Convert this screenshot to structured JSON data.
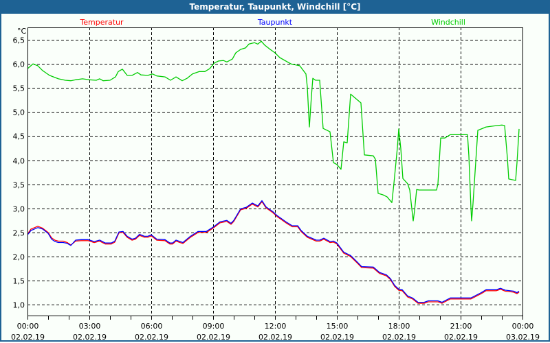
{
  "window": {
    "title": "Temperatur, Taupunkt, Windchill [°C]"
  },
  "chart_data": {
    "type": "line",
    "title": "Temperatur, Taupunkt, Windchill [°C]",
    "ylabel": "°C",
    "xlabel": "",
    "ylim": [
      0.75,
      6.75
    ],
    "xlim": [
      "02.02.19 00:00",
      "03.02.19 00:00"
    ],
    "grid": true,
    "legend_position": "top",
    "y_ticks": [
      "1,0",
      "1,5",
      "2,0",
      "2,5",
      "3,0",
      "3,5",
      "4,0",
      "4,5",
      "5,0",
      "5,5",
      "6,0",
      "6,5"
    ],
    "y_tick_values": [
      1.0,
      1.5,
      2.0,
      2.5,
      3.0,
      3.5,
      4.0,
      4.5,
      5.0,
      5.5,
      6.0,
      6.5
    ],
    "x_ticks": [
      {
        "time": "00:00",
        "date": "02.02.19"
      },
      {
        "time": "03:00",
        "date": "02.02.19"
      },
      {
        "time": "06:00",
        "date": "02.02.19"
      },
      {
        "time": "09:00",
        "date": "02.02.19"
      },
      {
        "time": "12:00",
        "date": "02.02.19"
      },
      {
        "time": "15:00",
        "date": "02.02.19"
      },
      {
        "time": "18:00",
        "date": "02.02.19"
      },
      {
        "time": "21:00",
        "date": "02.02.19"
      },
      {
        "time": "00:00",
        "date": "03.02.19"
      }
    ],
    "series": [
      {
        "name": "Windchill",
        "color": "#00cc00",
        "x": [
          "00:00",
          "00:16",
          "00:30",
          "00:44",
          "01:04",
          "01:30",
          "01:50",
          "02:06",
          "02:20",
          "02:40",
          "03:00",
          "03:20",
          "03:30",
          "03:40",
          "04:00",
          "04:16",
          "04:24",
          "04:36",
          "04:50",
          "05:04",
          "05:20",
          "05:30",
          "05:50",
          "06:04",
          "06:16",
          "06:40",
          "06:56",
          "07:12",
          "07:30",
          "07:44",
          "08:00",
          "08:20",
          "08:36",
          "08:50",
          "09:04",
          "09:16",
          "09:30",
          "09:40",
          "09:56",
          "10:06",
          "10:20",
          "10:34",
          "10:44",
          "11:00",
          "11:10",
          "11:20",
          "11:30",
          "11:44",
          "12:00",
          "12:14",
          "12:46",
          "13:12",
          "13:30",
          "13:34",
          "13:40",
          "13:46",
          "13:50",
          "13:58",
          "14:10",
          "14:20",
          "14:40",
          "14:50",
          "15:00",
          "15:12",
          "15:20",
          "15:30",
          "15:40",
          "16:10",
          "16:20",
          "16:46",
          "16:52",
          "17:00",
          "17:14",
          "17:26",
          "17:40",
          "17:46",
          "17:56",
          "18:00",
          "18:06",
          "18:12",
          "18:26",
          "18:32",
          "18:42",
          "18:46",
          "18:52",
          "19:00",
          "19:50",
          "19:54",
          "20:02",
          "20:14",
          "20:30",
          "21:20",
          "21:24",
          "21:30",
          "21:32",
          "21:36",
          "21:50",
          "22:14",
          "22:46",
          "23:00",
          "23:08",
          "23:16",
          "23:20",
          "23:40",
          "23:44",
          "23:50"
        ],
        "values": [
          5.9,
          6.0,
          5.96,
          5.86,
          5.76,
          5.69,
          5.66,
          5.65,
          5.67,
          5.69,
          5.67,
          5.66,
          5.69,
          5.65,
          5.66,
          5.73,
          5.84,
          5.89,
          5.76,
          5.76,
          5.82,
          5.77,
          5.76,
          5.79,
          5.75,
          5.73,
          5.66,
          5.73,
          5.65,
          5.7,
          5.79,
          5.84,
          5.84,
          5.9,
          6.02,
          6.06,
          6.07,
          6.04,
          6.1,
          6.23,
          6.3,
          6.33,
          6.41,
          6.44,
          6.41,
          6.47,
          6.39,
          6.31,
          6.23,
          6.13,
          6.0,
          5.96,
          5.79,
          5.52,
          4.69,
          5.33,
          5.7,
          5.66,
          5.66,
          4.66,
          4.59,
          3.95,
          3.91,
          3.81,
          4.38,
          4.36,
          5.37,
          5.19,
          4.11,
          4.09,
          4.02,
          3.31,
          3.28,
          3.24,
          3.12,
          3.52,
          4.26,
          4.65,
          4.24,
          3.62,
          3.51,
          3.38,
          2.74,
          2.95,
          3.39,
          3.38,
          3.38,
          3.51,
          4.46,
          4.46,
          4.53,
          4.53,
          4.09,
          3.01,
          2.74,
          3.1,
          4.62,
          4.69,
          4.72,
          4.73,
          4.72,
          4.05,
          3.61,
          3.58,
          3.95,
          4.65
        ]
      },
      {
        "name": "Temperatur",
        "color": "#ff0000",
        "x": [
          "00:00",
          "00:10",
          "00:30",
          "00:44",
          "01:00",
          "01:10",
          "01:20",
          "01:30",
          "01:44",
          "01:56",
          "02:06",
          "02:20",
          "02:36",
          "02:56",
          "03:14",
          "03:30",
          "03:46",
          "04:04",
          "04:14",
          "04:26",
          "04:38",
          "04:50",
          "05:04",
          "05:14",
          "05:26",
          "05:40",
          "05:50",
          "06:00",
          "06:16",
          "06:40",
          "06:54",
          "07:02",
          "07:12",
          "07:24",
          "07:32",
          "07:54",
          "08:16",
          "08:40",
          "09:00",
          "09:20",
          "09:40",
          "09:52",
          "10:00",
          "10:20",
          "10:36",
          "10:54",
          "11:10",
          "11:22",
          "11:34",
          "11:54",
          "12:06",
          "12:20",
          "12:34",
          "12:50",
          "13:06",
          "13:16",
          "13:34",
          "14:00",
          "14:10",
          "14:22",
          "14:40",
          "14:50",
          "15:00",
          "15:20",
          "15:40",
          "16:00",
          "16:12",
          "16:46",
          "17:04",
          "17:24",
          "17:36",
          "17:48",
          "18:00",
          "18:10",
          "18:26",
          "18:40",
          "18:56",
          "19:14",
          "19:26",
          "19:54",
          "20:06",
          "20:30",
          "21:30",
          "22:00",
          "22:14",
          "22:44",
          "22:56",
          "23:10",
          "23:34",
          "23:44",
          "23:50"
        ],
        "values": [
          2.48,
          2.58,
          2.64,
          2.6,
          2.51,
          2.4,
          2.35,
          2.33,
          2.33,
          2.3,
          2.25,
          2.33,
          2.34,
          2.34,
          2.3,
          2.33,
          2.27,
          2.27,
          2.31,
          2.5,
          2.51,
          2.41,
          2.35,
          2.37,
          2.45,
          2.41,
          2.41,
          2.44,
          2.35,
          2.34,
          2.27,
          2.27,
          2.33,
          2.3,
          2.28,
          2.41,
          2.51,
          2.51,
          2.6,
          2.71,
          2.74,
          2.68,
          2.74,
          2.98,
          3.01,
          3.1,
          3.04,
          3.15,
          3.02,
          2.92,
          2.84,
          2.77,
          2.7,
          2.63,
          2.63,
          2.53,
          2.41,
          2.33,
          2.33,
          2.37,
          2.3,
          2.31,
          2.27,
          2.08,
          2.01,
          1.87,
          1.78,
          1.77,
          1.66,
          1.61,
          1.53,
          1.39,
          1.31,
          1.3,
          1.17,
          1.13,
          1.04,
          1.04,
          1.07,
          1.07,
          1.04,
          1.13,
          1.13,
          1.24,
          1.3,
          1.3,
          1.33,
          1.29,
          1.27,
          1.24,
          1.27
        ]
      },
      {
        "name": "Taupunkt",
        "color": "#0000ff",
        "x": [
          "00:00",
          "00:10",
          "00:30",
          "00:44",
          "01:00",
          "01:10",
          "01:20",
          "01:30",
          "01:44",
          "01:56",
          "02:06",
          "02:20",
          "02:36",
          "02:56",
          "03:14",
          "03:30",
          "03:46",
          "04:04",
          "04:14",
          "04:26",
          "04:38",
          "04:50",
          "05:04",
          "05:14",
          "05:26",
          "05:40",
          "05:50",
          "06:00",
          "06:16",
          "06:40",
          "06:54",
          "07:02",
          "07:12",
          "07:24",
          "07:32",
          "07:54",
          "08:16",
          "08:40",
          "09:00",
          "09:20",
          "09:40",
          "09:52",
          "10:00",
          "10:20",
          "10:36",
          "10:54",
          "11:10",
          "11:22",
          "11:34",
          "11:54",
          "12:06",
          "12:20",
          "12:34",
          "12:50",
          "13:06",
          "13:16",
          "13:34",
          "14:00",
          "14:10",
          "14:22",
          "14:40",
          "14:50",
          "15:00",
          "15:20",
          "15:40",
          "16:00",
          "16:12",
          "16:46",
          "17:04",
          "17:24",
          "17:36",
          "17:48",
          "18:00",
          "18:10",
          "18:26",
          "18:40",
          "18:56",
          "19:14",
          "19:26",
          "19:54",
          "20:06",
          "20:30",
          "21:30",
          "22:00",
          "22:14",
          "22:44",
          "22:56",
          "23:10",
          "23:34",
          "23:44",
          "23:50"
        ],
        "values": [
          2.45,
          2.54,
          2.6,
          2.57,
          2.48,
          2.36,
          2.31,
          2.29,
          2.29,
          2.27,
          2.23,
          2.34,
          2.35,
          2.35,
          2.31,
          2.34,
          2.28,
          2.28,
          2.32,
          2.51,
          2.52,
          2.42,
          2.36,
          2.38,
          2.46,
          2.42,
          2.42,
          2.45,
          2.36,
          2.35,
          2.28,
          2.28,
          2.34,
          2.31,
          2.29,
          2.42,
          2.52,
          2.52,
          2.61,
          2.72,
          2.75,
          2.69,
          2.75,
          2.99,
          3.02,
          3.11,
          3.05,
          3.16,
          3.03,
          2.93,
          2.85,
          2.78,
          2.71,
          2.64,
          2.64,
          2.54,
          2.42,
          2.34,
          2.34,
          2.38,
          2.31,
          2.32,
          2.28,
          2.09,
          2.02,
          1.88,
          1.79,
          1.78,
          1.67,
          1.62,
          1.54,
          1.4,
          1.32,
          1.31,
          1.18,
          1.14,
          1.05,
          1.05,
          1.08,
          1.08,
          1.05,
          1.14,
          1.14,
          1.25,
          1.31,
          1.31,
          1.34,
          1.3,
          1.28,
          1.25,
          1.28
        ]
      }
    ]
  }
}
